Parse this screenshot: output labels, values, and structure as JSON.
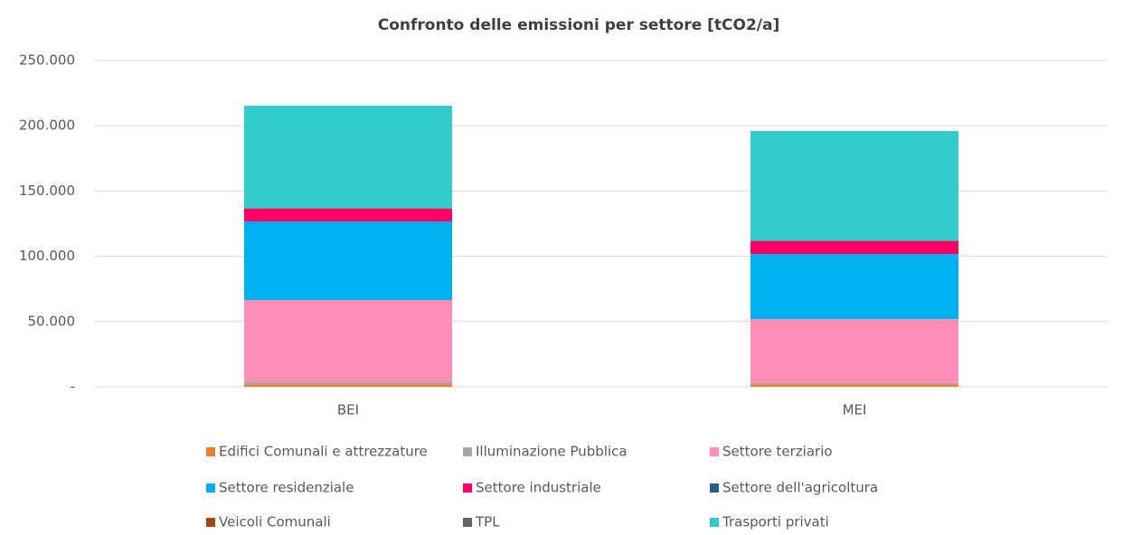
{
  "chart_data": {
    "type": "stacked_bar",
    "title": "Confronto delle emissioni per settore [tCO2/a]",
    "categories": [
      "BEI",
      "MEI"
    ],
    "series": [
      {
        "name": "Edifici Comunali e attrezzature",
        "color": "#ed7d31",
        "values": [
          2000,
          1800
        ]
      },
      {
        "name": "Illuminazione Pubblica",
        "color": "#a5a5a5",
        "values": [
          1500,
          1200
        ]
      },
      {
        "name": "Settore terziario",
        "color": "#ff8fb8",
        "values": [
          63000,
          48900
        ]
      },
      {
        "name": "Settore residenziale",
        "color": "#00b0f0",
        "values": [
          60200,
          49900
        ]
      },
      {
        "name": "Settore industriale",
        "color": "#ff0066",
        "values": [
          9700,
          9700
        ]
      },
      {
        "name": "Settore dell'agricoltura",
        "color": "#255e91",
        "values": [
          0,
          0
        ]
      },
      {
        "name": "Veicoli Comunali",
        "color": "#9e480e",
        "values": [
          100,
          100
        ]
      },
      {
        "name": "TPL",
        "color": "#636363",
        "values": [
          500,
          500
        ]
      },
      {
        "name": "Trasporti privati",
        "color": "#33cccc",
        "values": [
          78400,
          83900
        ]
      }
    ],
    "ylim": [
      0,
      250000
    ],
    "yticks": [
      {
        "value": 0,
        "label": "-"
      },
      {
        "value": 50000,
        "label": "50.000"
      },
      {
        "value": 100000,
        "label": "100.000"
      },
      {
        "value": 150000,
        "label": "150.000"
      },
      {
        "value": 200000,
        "label": "200.000"
      },
      {
        "value": 250000,
        "label": "250.000"
      }
    ],
    "grid": true,
    "legend": "bottom"
  }
}
